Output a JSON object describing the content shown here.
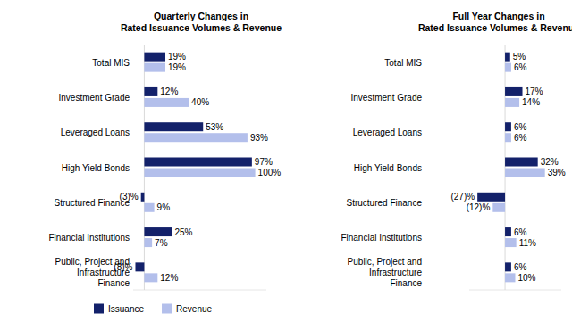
{
  "chart_data": [
    {
      "type": "bar",
      "orientation": "horizontal",
      "title": "Quarterly Changes in\nRated Issuance Volumes & Revenue",
      "categories": [
        "Total MIS",
        "Investment Grade",
        "Leveraged Loans",
        "High Yield Bonds",
        "Structured Finance",
        "Financial Institutions",
        "Public, Project and\nInfrastructure\nFinance"
      ],
      "series": [
        {
          "name": "Issuance",
          "color": "#13216a",
          "values": [
            19,
            12,
            53,
            97,
            -3,
            25,
            -8
          ],
          "value_labels": [
            "19%",
            "12%",
            "53%",
            "97%",
            "(3)%",
            "25%",
            "(8)%"
          ]
        },
        {
          "name": "Revenue",
          "color": "#b3bfeb",
          "values": [
            19,
            40,
            93,
            100,
            9,
            7,
            12
          ],
          "value_labels": [
            "19%",
            "40%",
            "93%",
            "100%",
            "9%",
            "7%",
            "12%"
          ]
        }
      ],
      "xlim": [
        -10,
        110
      ],
      "xticks": [
        0
      ],
      "grid": true,
      "data_labels": true,
      "tick_labels": "y",
      "legend": "bottom"
    },
    {
      "type": "bar",
      "orientation": "horizontal",
      "title": "Full Year Changes in\nRated Issuance Volumes & Revenue",
      "categories": [
        "Total MIS",
        "Investment Grade",
        "Leveraged Loans",
        "High Yield Bonds",
        "Structured Finance",
        "Financial Institutions",
        "Public, Project and\nInfrastructure\nFinance"
      ],
      "series": [
        {
          "color": "#13216a",
          "values": [
            5,
            17,
            6,
            32,
            -27,
            6,
            6
          ],
          "value_labels": [
            "5%",
            "17%",
            "6%",
            "32%",
            "(27)%",
            "6%",
            "6%"
          ]
        },
        {
          "color": "#b3bfeb",
          "values": [
            6,
            14,
            6,
            39,
            -12,
            11,
            10
          ],
          "value_labels": [
            "6%",
            "14%",
            "6%",
            "39%",
            "(12)%",
            "11%",
            "10%"
          ]
        }
      ],
      "xlim": [
        -35,
        55
      ],
      "xticks": [
        0
      ],
      "grid": true,
      "data_labels": true,
      "tick_labels": "y"
    }
  ]
}
